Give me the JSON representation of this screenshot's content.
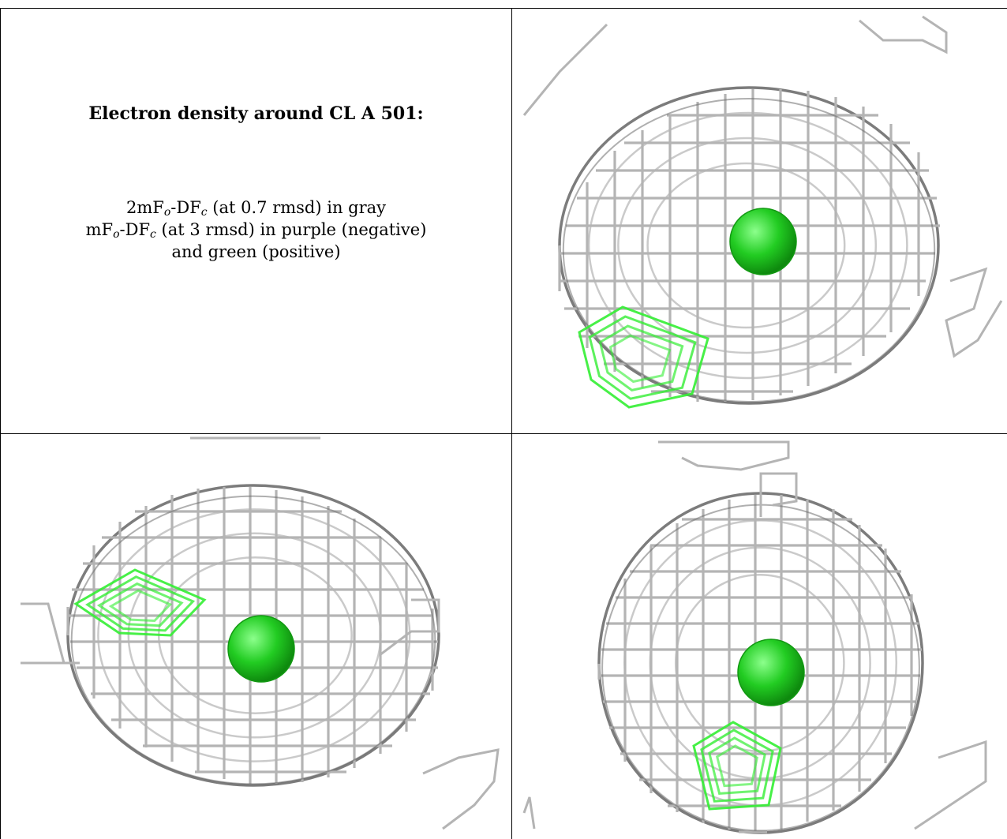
{
  "legend": {
    "title": "Electron density around CL A 501:",
    "line1": {
      "pre": "2mF",
      "sub1": "o",
      "mid": "-DF",
      "sub2": "c",
      "post": " (at 0.7 rmsd) in gray"
    },
    "line2": {
      "pre": "mF",
      "sub1": "o",
      "mid": "-DF",
      "sub2": "c",
      "post": " (at 3 rmsd) in purple (negative)"
    },
    "line3": "and green (positive)"
  },
  "colors": {
    "mesh_gray": "#b4b4b4",
    "mesh_dark": "#6e6e6e",
    "mesh_green": "#33ee33",
    "atom_green": "#22cc22",
    "border": "#000000"
  },
  "views": [
    {
      "name": "view-top-right",
      "atom": "CL A 501"
    },
    {
      "name": "view-bottom-left",
      "atom": "CL A 501"
    },
    {
      "name": "view-bottom-right",
      "atom": "CL A 501"
    }
  ]
}
